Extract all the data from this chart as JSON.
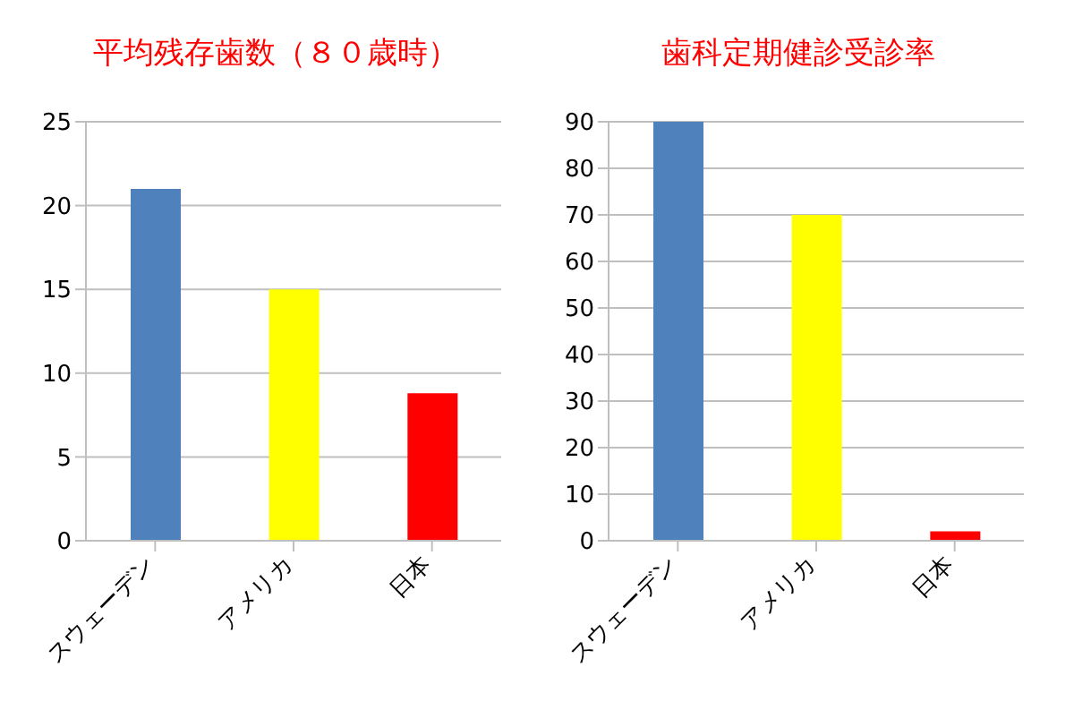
{
  "chart_data": [
    {
      "type": "bar",
      "title": "平均残存歯数（８０歳時）",
      "categories": [
        "スウェーデン",
        "アメリカ",
        "日本"
      ],
      "values": [
        21,
        15,
        8.8
      ],
      "colors": [
        "#4f81bd",
        "#ffff00",
        "#ff0000"
      ],
      "ylim": [
        0,
        25
      ],
      "yticks": [
        0,
        5,
        10,
        15,
        20,
        25
      ],
      "grid": "y"
    },
    {
      "type": "bar",
      "title": "歯科定期健診受診率",
      "categories": [
        "スウェーデン",
        "アメリカ",
        "日本"
      ],
      "values": [
        90,
        70,
        2
      ],
      "colors": [
        "#4f81bd",
        "#ffff00",
        "#ff0000"
      ],
      "ylim": [
        0,
        90
      ],
      "yticks": [
        0,
        10,
        20,
        30,
        40,
        50,
        60,
        70,
        80,
        90
      ],
      "grid": "y"
    }
  ]
}
